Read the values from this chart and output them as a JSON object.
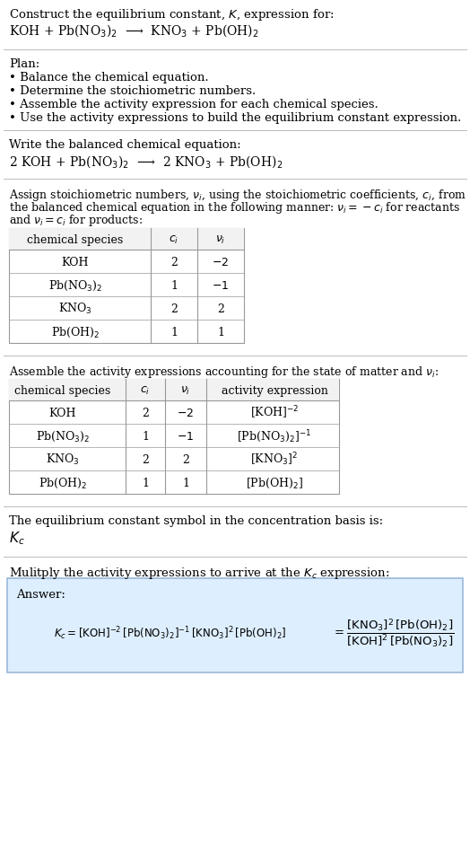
{
  "bg_color": "#ffffff",
  "text_color": "#000000",
  "title_line1": "Construct the equilibrium constant, $K$, expression for:",
  "title_line2": "KOH + Pb(NO$_3$)$_2$  ⟶  KNO$_3$ + Pb(OH)$_2$",
  "plan_header": "Plan:",
  "plan_items": [
    "• Balance the chemical equation.",
    "• Determine the stoichiometric numbers.",
    "• Assemble the activity expression for each chemical species.",
    "• Use the activity expressions to build the equilibrium constant expression."
  ],
  "balanced_header": "Write the balanced chemical equation:",
  "balanced_eq": "2 KOH + Pb(NO$_3$)$_2$  ⟶  2 KNO$_3$ + Pb(OH)$_2$",
  "stoich_line1": "Assign stoichiometric numbers, $\\nu_i$, using the stoichiometric coefficients, $c_i$, from",
  "stoich_line2": "the balanced chemical equation in the following manner: $\\nu_i = -c_i$ for reactants",
  "stoich_line3": "and $\\nu_i = c_i$ for products:",
  "table1_cols": [
    "chemical species",
    "$c_i$",
    "$\\nu_i$"
  ],
  "table1_rows": [
    [
      "KOH",
      "2",
      "$-2$"
    ],
    [
      "Pb(NO$_3$)$_2$",
      "1",
      "$-1$"
    ],
    [
      "KNO$_3$",
      "2",
      "2"
    ],
    [
      "Pb(OH)$_2$",
      "1",
      "1"
    ]
  ],
  "activity_header": "Assemble the activity expressions accounting for the state of matter and $\\nu_i$:",
  "table2_cols": [
    "chemical species",
    "$c_i$",
    "$\\nu_i$",
    "activity expression"
  ],
  "table2_rows": [
    [
      "KOH",
      "2",
      "$-2$",
      "[KOH]$^{-2}$"
    ],
    [
      "Pb(NO$_3$)$_2$",
      "1",
      "$-1$",
      "[Pb(NO$_3$)$_2$]$^{-1}$"
    ],
    [
      "KNO$_3$",
      "2",
      "2",
      "[KNO$_3$]$^{2}$"
    ],
    [
      "Pb(OH)$_2$",
      "1",
      "1",
      "[Pb(OH)$_2$]"
    ]
  ],
  "kc_symbol_text": "The equilibrium constant symbol in the concentration basis is:",
  "kc_symbol": "$K_c$",
  "multiply_text": "Mulitply the activity expressions to arrive at the $K_c$ expression:",
  "answer_box_color": "#ddeeff",
  "answer_border_color": "#9ab8d8",
  "answer_label": "Answer:",
  "kc_line1": "$K_c = \\mathrm{[KOH]^{-2}\\,[Pb(NO_3)_2]^{-1}\\,[KNO_3]^{2}\\,[Pb(OH)_2]}$",
  "kc_equals": "$= \\dfrac{\\mathrm{[KNO_3]^2\\,[Pb(OH)_2]}}{\\mathrm{[KOH]^2\\,[Pb(NO_3)_2]}}$"
}
